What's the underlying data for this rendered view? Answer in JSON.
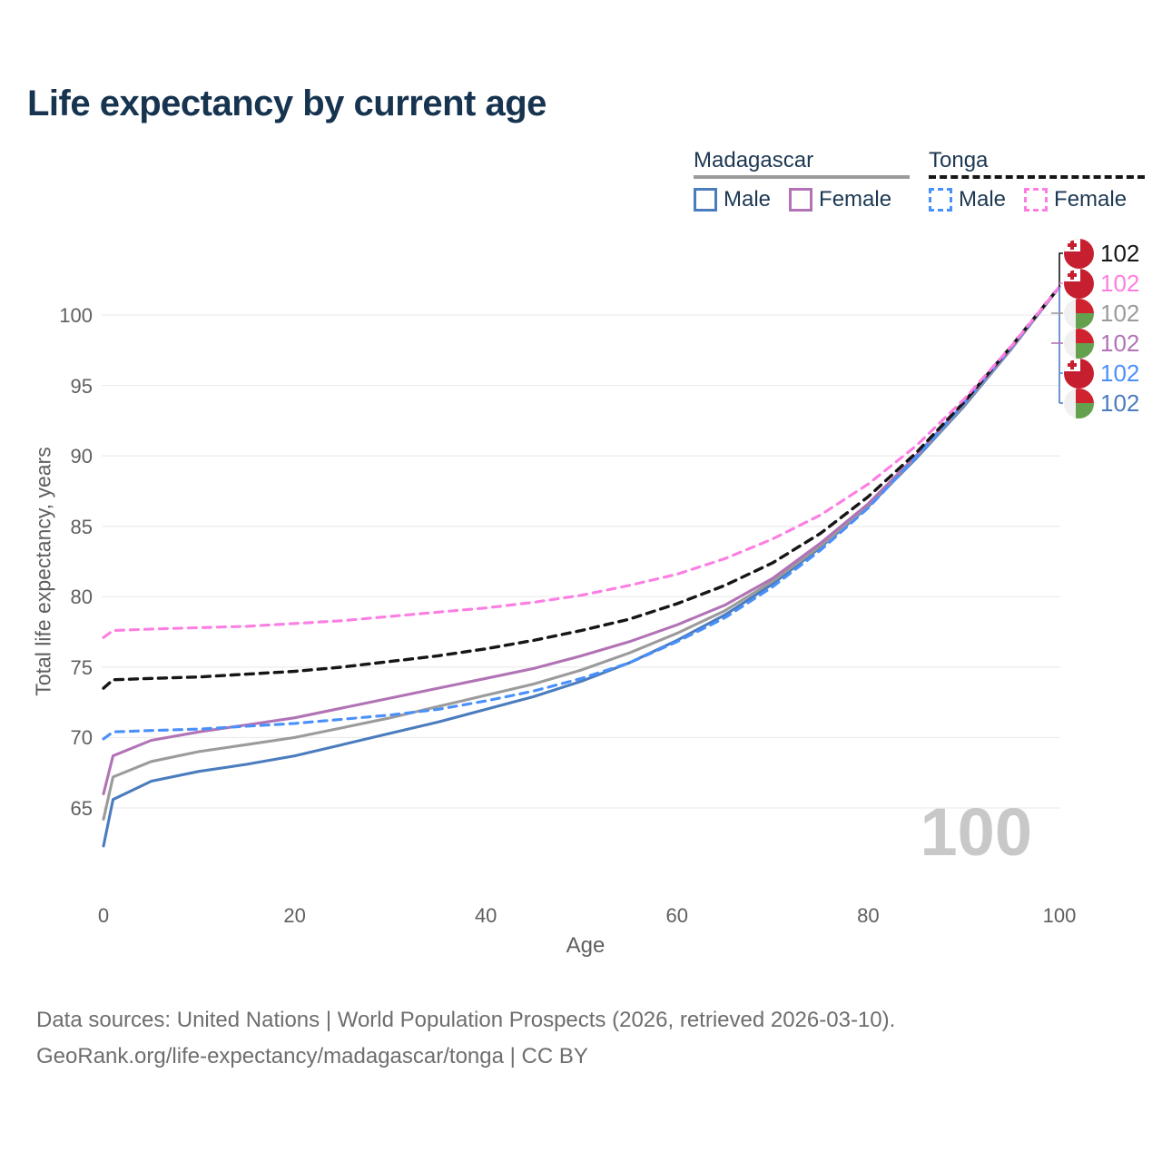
{
  "title": "Life expectancy by current age",
  "legend": {
    "groups": [
      {
        "label": "Madagascar",
        "line_style": "solid",
        "line_color": "#9b9b9b",
        "items": [
          {
            "label": "Male",
            "color": "#4a7cbe",
            "dashed": false
          },
          {
            "label": "Female",
            "color": "#b173b5",
            "dashed": false
          }
        ]
      },
      {
        "label": "Tonga",
        "line_style": "dashed",
        "line_color": "#161616",
        "items": [
          {
            "label": "Male",
            "color": "#4a90fb",
            "dashed": true
          },
          {
            "label": "Female",
            "color": "#fc7ee2",
            "dashed": true
          }
        ]
      }
    ]
  },
  "chart_data": {
    "type": "line",
    "title": "Life expectancy by current age",
    "xlabel": "Age",
    "ylabel": "Total life expectancy, years",
    "xlim": [
      0,
      100
    ],
    "ylim": [
      61,
      103
    ],
    "xticks": [
      0,
      20,
      40,
      60,
      80,
      100
    ],
    "yticks": [
      65,
      70,
      75,
      80,
      85,
      90,
      95,
      100
    ],
    "grid": "horizontal",
    "legend_position": "top-right",
    "age_counter_watermark": "100",
    "x_ages": [
      0,
      1,
      5,
      10,
      15,
      20,
      25,
      30,
      35,
      40,
      45,
      50,
      55,
      60,
      65,
      70,
      75,
      80,
      85,
      90,
      95,
      100
    ],
    "series": [
      {
        "id": "madagascar-male",
        "name": "Madagascar Male",
        "color": "#4a7cbe",
        "dash": "solid",
        "values": [
          62.3,
          65.6,
          66.9,
          67.6,
          68.1,
          68.7,
          69.5,
          70.3,
          71.1,
          72.0,
          72.9,
          74.0,
          75.3,
          76.9,
          78.7,
          80.9,
          83.5,
          86.4,
          89.8,
          93.5,
          97.6,
          102
        ]
      },
      {
        "id": "madagascar-both",
        "name": "Madagascar",
        "color": "#9b9b9b",
        "dash": "solid",
        "values": [
          64.2,
          67.2,
          68.3,
          69.0,
          69.5,
          70.0,
          70.7,
          71.4,
          72.2,
          73.0,
          73.8,
          74.8,
          76.0,
          77.4,
          79.0,
          81.1,
          83.6,
          86.5,
          89.9,
          93.6,
          97.6,
          102
        ]
      },
      {
        "id": "madagascar-female",
        "name": "Madagascar Female",
        "color": "#b173b5",
        "dash": "solid",
        "values": [
          66.0,
          68.7,
          69.8,
          70.4,
          70.9,
          71.4,
          72.1,
          72.8,
          73.5,
          74.2,
          74.9,
          75.8,
          76.8,
          78.0,
          79.4,
          81.3,
          83.8,
          86.6,
          90.0,
          93.7,
          97.7,
          102
        ]
      },
      {
        "id": "tonga-male",
        "name": "Tonga Male",
        "color": "#4a90fb",
        "dash": "dashed",
        "values": [
          69.9,
          70.4,
          70.5,
          70.6,
          70.8,
          71.0,
          71.3,
          71.6,
          72.0,
          72.6,
          73.3,
          74.2,
          75.3,
          76.8,
          78.5,
          80.7,
          83.3,
          86.3,
          89.9,
          93.7,
          97.7,
          102
        ]
      },
      {
        "id": "tonga-both",
        "name": "Tonga",
        "color": "#161616",
        "dash": "dashed",
        "values": [
          73.5,
          74.1,
          74.2,
          74.3,
          74.5,
          74.7,
          75.0,
          75.4,
          75.8,
          76.3,
          76.9,
          77.6,
          78.4,
          79.5,
          80.8,
          82.4,
          84.5,
          87.1,
          90.2,
          93.8,
          97.8,
          102
        ]
      },
      {
        "id": "tonga-female",
        "name": "Tonga Female",
        "color": "#fc7ee2",
        "dash": "dashed",
        "values": [
          77.1,
          77.6,
          77.7,
          77.8,
          77.9,
          78.1,
          78.3,
          78.6,
          78.9,
          79.2,
          79.6,
          80.1,
          80.8,
          81.6,
          82.7,
          84.1,
          85.8,
          88.0,
          90.7,
          94.0,
          97.8,
          102
        ]
      }
    ],
    "end_labels": [
      {
        "flag": "tonga",
        "value": "102",
        "color": "#161616",
        "series": "tonga-both"
      },
      {
        "flag": "tonga",
        "value": "102",
        "color": "#fc7ee2",
        "series": "tonga-female"
      },
      {
        "flag": "madagascar",
        "value": "102",
        "color": "#9b9b9b",
        "series": "madagascar-both"
      },
      {
        "flag": "madagascar",
        "value": "102",
        "color": "#b173b5",
        "series": "madagascar-female"
      },
      {
        "flag": "tonga",
        "value": "102",
        "color": "#4a90fb",
        "series": "tonga-male"
      },
      {
        "flag": "madagascar",
        "value": "102",
        "color": "#4a7cbe",
        "series": "madagascar-male"
      }
    ]
  },
  "flag_colors": {
    "tonga_red": "#c51f30",
    "madagascar_white": "#f0f0f0",
    "madagascar_red": "#cf2330",
    "madagascar_green": "#63a14f"
  },
  "footer": {
    "line1": "Data sources: United Nations | World Population Prospects (2026, retrieved 2026-03-10).",
    "line2": "GeoRank.org/life-expectancy/madagascar/tonga | CC BY"
  }
}
